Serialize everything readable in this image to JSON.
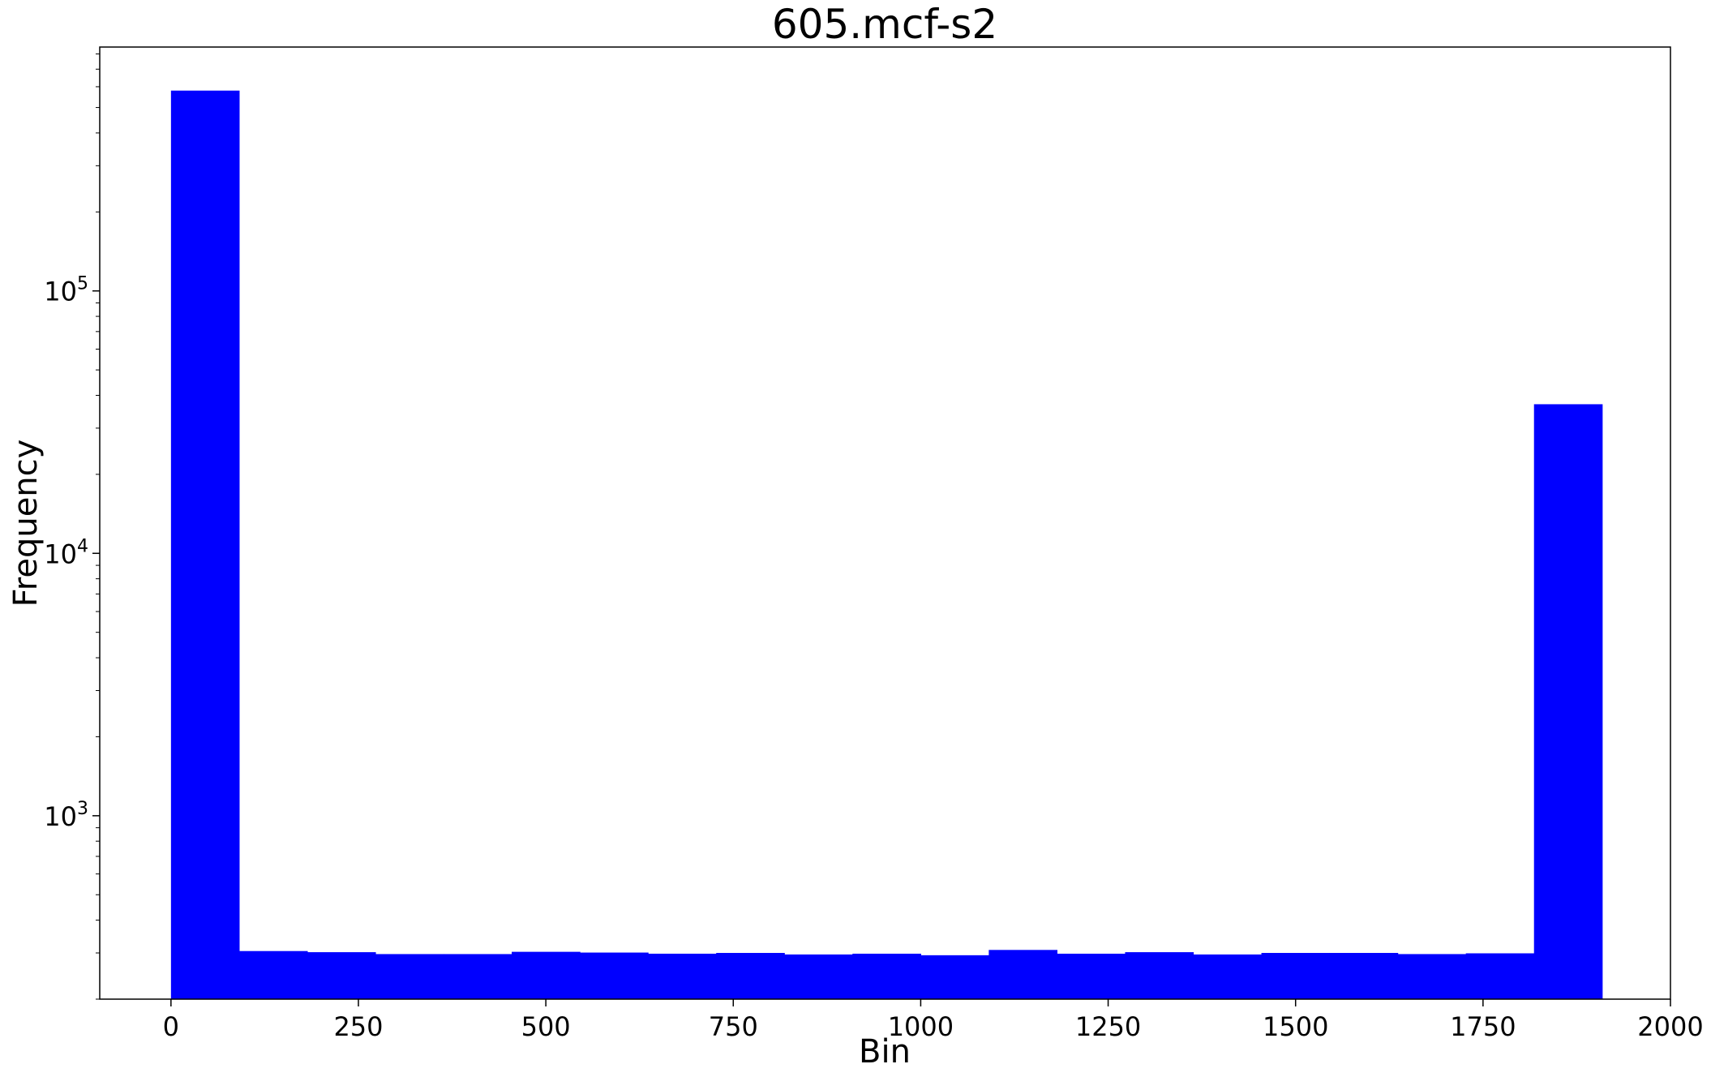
{
  "chart_data": {
    "type": "bar",
    "title": "605.mcf-s2",
    "xlabel": "Bin",
    "ylabel": "Frequency",
    "xlim": [
      -95,
      2000
    ],
    "ylim": [
      200,
      850000
    ],
    "y_scale": "log",
    "grid": false,
    "bar_color": "#0000ff",
    "bin_width": 90.9,
    "x_ticks": [
      0,
      250,
      500,
      750,
      1000,
      1250,
      1500,
      1750,
      2000
    ],
    "x_tick_labels": [
      "0",
      "250",
      "500",
      "750",
      "1000",
      "1250",
      "1500",
      "1750",
      "2000"
    ],
    "y_ticks": [
      1000,
      10000,
      100000
    ],
    "y_tick_labels": [
      {
        "base": "10",
        "exp": "3"
      },
      {
        "base": "10",
        "exp": "4"
      },
      {
        "base": "10",
        "exp": "5"
      }
    ],
    "bins_start": [
      0,
      90.9,
      181.8,
      272.7,
      363.6,
      454.5,
      545.4,
      636.3,
      727.2,
      818.1,
      909,
      999.9,
      1090.8,
      1181.7,
      1272.6,
      1363.5,
      1454.4,
      1545.3,
      1636.2,
      1727.1,
      1818
    ],
    "values": [
      580000,
      305,
      302,
      297,
      297,
      303,
      301,
      298,
      300,
      296,
      298,
      294,
      308,
      298,
      302,
      296,
      300,
      300,
      297,
      299,
      37000
    ]
  }
}
